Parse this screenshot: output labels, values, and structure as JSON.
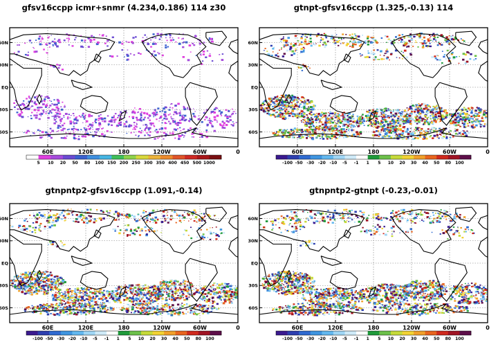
{
  "chart_data": [
    {
      "type": "heatmap",
      "title": "gfsv16ccpp  icmr+snmr  (4.234,0.186)  114  z30",
      "x_ticks": [
        "60E",
        "120E",
        "180",
        "120W",
        "60W",
        "0"
      ],
      "y_ticks": [
        "60N",
        "30N",
        "EQ",
        "30S",
        "60S"
      ],
      "grid": true,
      "colorbar": {
        "labels": [
          "5",
          "10",
          "20",
          "50",
          "80",
          "100",
          "150",
          "200",
          "250",
          "300",
          "350",
          "400",
          "450",
          "500",
          "1000"
        ],
        "colors": [
          "#ffffff",
          "#df3fdf",
          "#a64cdc",
          "#6b4bd3",
          "#3a61cf",
          "#3f8fdf",
          "#46b6e3",
          "#3fbf5a",
          "#8ed34a",
          "#d8d83c",
          "#ecb43a",
          "#ec8a2c",
          "#e0552a",
          "#cf2a24",
          "#a8181a",
          "#7a0f12"
        ]
      }
    },
    {
      "type": "heatmap",
      "title": "gtnpt-gfsv16ccpp  (1.325,-0.13)  114",
      "x_ticks": [
        "60E",
        "120E",
        "180",
        "120W",
        "60W",
        "0"
      ],
      "y_ticks": [
        "60N",
        "30N",
        "EQ",
        "30S",
        "60S"
      ],
      "grid": true,
      "colorbar": {
        "labels": [
          "-100",
          "-50",
          "-30",
          "-20",
          "-10",
          "-5",
          "-1",
          "1",
          "5",
          "10",
          "20",
          "30",
          "40",
          "50",
          "80",
          "100"
        ],
        "colors": [
          "#3a1a8f",
          "#2d3fb0",
          "#2f6ad0",
          "#3f95e0",
          "#63b8ef",
          "#9fd6f5",
          "#cfeaf8",
          "#ffffff",
          "#1f9a3a",
          "#6cc04a",
          "#c6da3a",
          "#f2d233",
          "#f0a02a",
          "#e8651f",
          "#cf2a1e",
          "#a01525",
          "#5e0f4a"
        ]
      }
    },
    {
      "type": "heatmap",
      "title": "gtnpntp2-gfsv16ccpp  (1.091,-0.14)",
      "x_ticks": [
        "60E",
        "120E",
        "180",
        "120W",
        "60W",
        "0"
      ],
      "y_ticks": [
        "60N",
        "30N",
        "EQ",
        "30S",
        "60S"
      ],
      "grid": true,
      "colorbar": {
        "labels": [
          "-100",
          "-50",
          "-30",
          "-20",
          "-10",
          "-5",
          "-1",
          "1",
          "5",
          "10",
          "20",
          "30",
          "40",
          "50",
          "80",
          "100"
        ],
        "colors": [
          "#3a1a8f",
          "#2d3fb0",
          "#2f6ad0",
          "#3f95e0",
          "#63b8ef",
          "#9fd6f5",
          "#cfeaf8",
          "#ffffff",
          "#1f9a3a",
          "#6cc04a",
          "#c6da3a",
          "#f2d233",
          "#f0a02a",
          "#e8651f",
          "#cf2a1e",
          "#a01525",
          "#5e0f4a"
        ]
      }
    },
    {
      "type": "heatmap",
      "title": "gtnpntp2-gtnpt  (-0.23,-0.01)",
      "x_ticks": [
        "60E",
        "120E",
        "180",
        "120W",
        "60W",
        "0"
      ],
      "y_ticks": [
        "60N",
        "30N",
        "EQ",
        "30S",
        "60S"
      ],
      "grid": true,
      "colorbar": {
        "labels": [
          "-100",
          "-50",
          "-30",
          "-20",
          "-10",
          "-5",
          "-1",
          "1",
          "5",
          "10",
          "20",
          "30",
          "40",
          "50",
          "80",
          "100"
        ],
        "colors": [
          "#3a1a8f",
          "#2d3fb0",
          "#2f6ad0",
          "#3f95e0",
          "#63b8ef",
          "#9fd6f5",
          "#cfeaf8",
          "#ffffff",
          "#1f9a3a",
          "#6cc04a",
          "#c6da3a",
          "#f2d233",
          "#f0a02a",
          "#e8651f",
          "#cf2a1e",
          "#a01525",
          "#5e0f4a"
        ]
      }
    }
  ]
}
